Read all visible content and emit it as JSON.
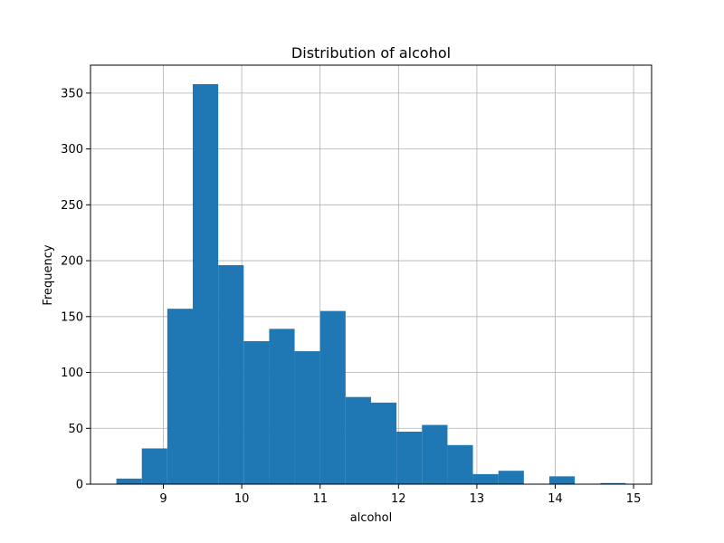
{
  "chart_data": {
    "type": "bar",
    "title": "Distribution of alcohol",
    "xlabel": "alcohol",
    "ylabel": "Frequency",
    "xlim": [
      8.07,
      15.23
    ],
    "ylim": [
      0,
      375
    ],
    "x_ticks": [
      9,
      10,
      11,
      12,
      13,
      14,
      15
    ],
    "y_ticks": [
      0,
      50,
      100,
      150,
      200,
      250,
      300,
      350
    ],
    "grid": true,
    "bar_color": "#1f77b4",
    "bins": [
      {
        "x0": 8.4,
        "x1": 8.725,
        "value": 5
      },
      {
        "x0": 8.725,
        "x1": 9.05,
        "value": 32
      },
      {
        "x0": 9.05,
        "x1": 9.375,
        "value": 157
      },
      {
        "x0": 9.375,
        "x1": 9.7,
        "value": 358
      },
      {
        "x0": 9.7,
        "x1": 10.025,
        "value": 196
      },
      {
        "x0": 10.025,
        "x1": 10.35,
        "value": 128
      },
      {
        "x0": 10.35,
        "x1": 10.675,
        "value": 139
      },
      {
        "x0": 10.675,
        "x1": 11.0,
        "value": 119
      },
      {
        "x0": 11.0,
        "x1": 11.325,
        "value": 155
      },
      {
        "x0": 11.325,
        "x1": 11.65,
        "value": 78
      },
      {
        "x0": 11.65,
        "x1": 11.975,
        "value": 73
      },
      {
        "x0": 11.975,
        "x1": 12.3,
        "value": 47
      },
      {
        "x0": 12.3,
        "x1": 12.625,
        "value": 53
      },
      {
        "x0": 12.625,
        "x1": 12.95,
        "value": 35
      },
      {
        "x0": 12.95,
        "x1": 13.275,
        "value": 9
      },
      {
        "x0": 13.275,
        "x1": 13.6,
        "value": 12
      },
      {
        "x0": 13.6,
        "x1": 13.925,
        "value": 0
      },
      {
        "x0": 13.925,
        "x1": 14.25,
        "value": 7
      },
      {
        "x0": 14.25,
        "x1": 14.575,
        "value": 0
      },
      {
        "x0": 14.575,
        "x1": 14.9,
        "value": 1
      }
    ]
  }
}
